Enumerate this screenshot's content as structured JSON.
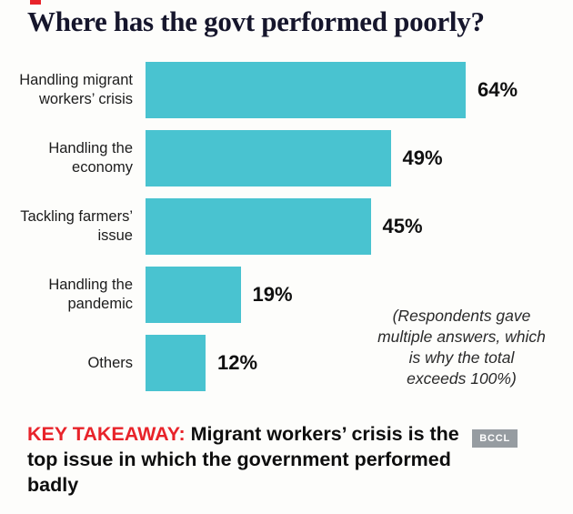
{
  "title": "Where has the govt performed poorly?",
  "chart_data": {
    "type": "bar",
    "orientation": "horizontal",
    "title": "Where has the govt performed poorly?",
    "categories": [
      "Handling migrant workers’ crisis",
      "Handling the economy",
      "Tackling farmers’ issue",
      "Handling the pandemic",
      "Others"
    ],
    "values": [
      64,
      49,
      45,
      19,
      12
    ],
    "value_labels": [
      "64%",
      "49%",
      "45%",
      "19%",
      "12%"
    ],
    "unit": "%",
    "xlim": [
      0,
      70
    ],
    "grid": false,
    "legend": false,
    "bar_color": "#49c3d0"
  },
  "note": "(Respondents gave multiple answers, which is why the total exceeds 100%)",
  "takeaway": {
    "label": "KEY TAKEAWAY:",
    "text": " Migrant workers’ crisis is the top issue in which the government performed badly",
    "label_color": "#e8232a"
  },
  "watermark": "BCCL",
  "colors": {
    "accent_red": "#e8232a",
    "bar_teal": "#49c3d0",
    "title_ink": "#16162c"
  }
}
